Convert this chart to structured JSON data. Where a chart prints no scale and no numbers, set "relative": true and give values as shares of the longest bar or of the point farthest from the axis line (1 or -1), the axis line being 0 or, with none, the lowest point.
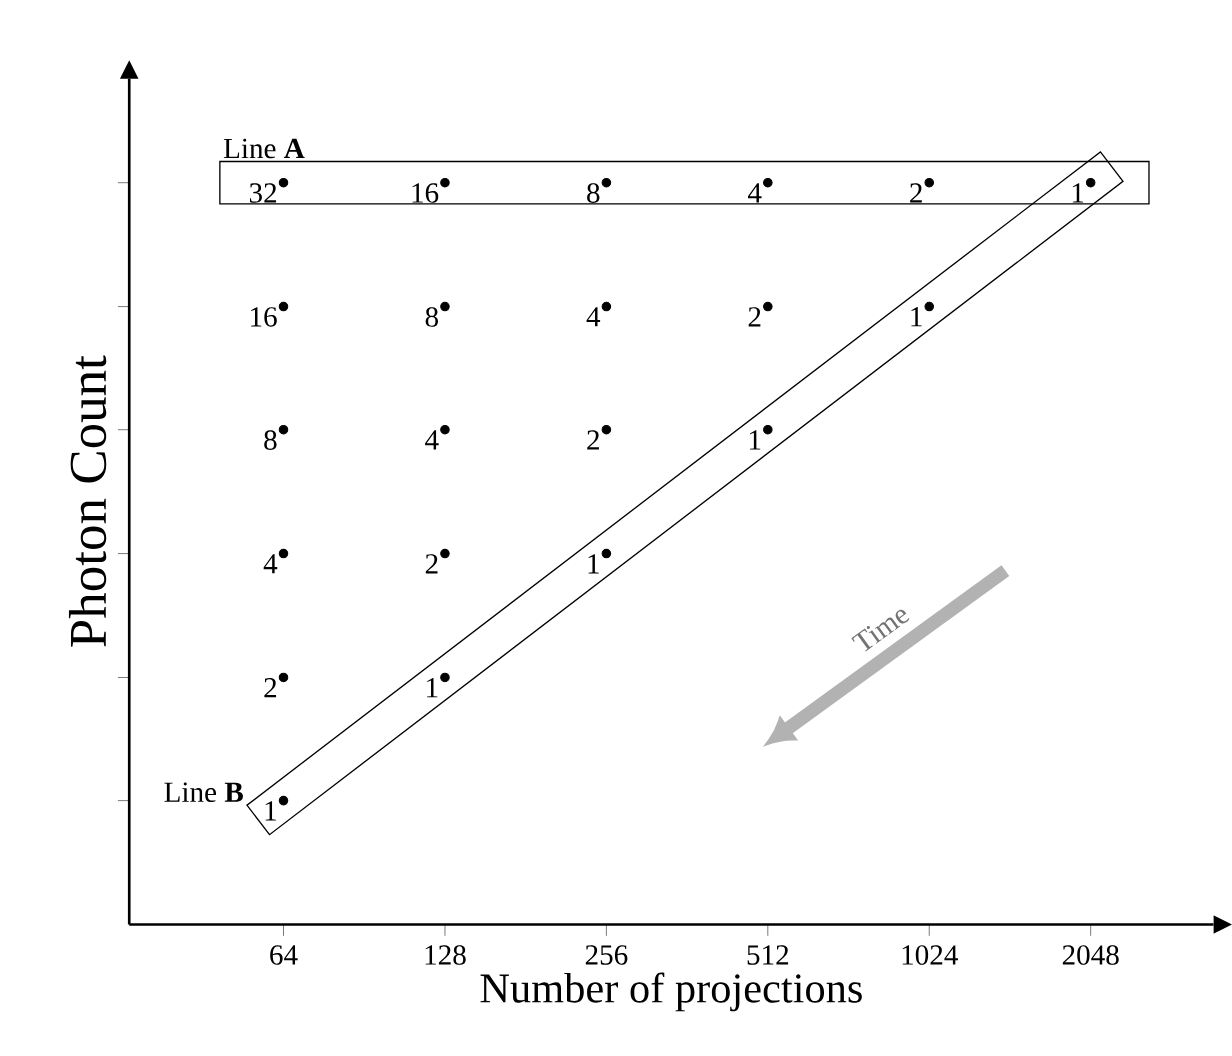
{
  "chart_data": {
    "type": "scatter",
    "relative": true,
    "xlabel": "Number of projections",
    "ylabel": "Photon Count",
    "log": "x",
    "xlim": [
      33,
      3470
    ],
    "xticks": [
      64,
      128,
      256,
      512,
      1024,
      2048
    ],
    "series": [
      {
        "color": "#000000",
        "x": [
          64,
          128,
          256,
          512,
          1024,
          2048,
          64,
          128,
          256,
          512,
          1024,
          64,
          128,
          256,
          512,
          64,
          128,
          256,
          64,
          128,
          64
        ],
        "values": [
          1,
          1,
          1,
          1,
          1,
          1,
          0.833,
          0.833,
          0.833,
          0.833,
          0.833,
          0.667,
          0.667,
          0.667,
          0.667,
          0.5,
          0.5,
          0.5,
          0.333,
          0.333,
          0.167
        ]
      }
    ],
    "marker": "circle",
    "annotations": [
      "Line **A**",
      "Line **B**",
      "Time",
      {
        "text": "32",
        "x": 64,
        "y": 1
      },
      {
        "text": "16",
        "x": 128,
        "y": 1
      },
      {
        "text": "8",
        "x": 256,
        "y": 1
      },
      {
        "text": "4",
        "x": 512,
        "y": 1
      },
      {
        "text": "2",
        "x": 1024,
        "y": 1
      },
      {
        "text": "1",
        "x": 2048,
        "y": 1
      },
      {
        "text": "16",
        "x": 64,
        "y": 0.833
      },
      {
        "text": "8",
        "x": 128,
        "y": 0.833
      },
      {
        "text": "4",
        "x": 256,
        "y": 0.833
      },
      {
        "text": "2",
        "x": 512,
        "y": 0.833
      },
      {
        "text": "1",
        "x": 1024,
        "y": 0.833
      },
      {
        "text": "8",
        "x": 64,
        "y": 0.667
      },
      {
        "text": "4",
        "x": 128,
        "y": 0.667
      },
      {
        "text": "2",
        "x": 256,
        "y": 0.667
      },
      {
        "text": "1",
        "x": 512,
        "y": 0.667
      },
      {
        "text": "4",
        "x": 64,
        "y": 0.5
      },
      {
        "text": "2",
        "x": 128,
        "y": 0.5
      },
      {
        "text": "1",
        "x": 256,
        "y": 0.5
      },
      {
        "text": "2",
        "x": 64,
        "y": 0.333
      },
      {
        "text": "1",
        "x": 128,
        "y": 0.333
      },
      {
        "text": "1",
        "x": 64,
        "y": 0.167
      }
    ]
  }
}
